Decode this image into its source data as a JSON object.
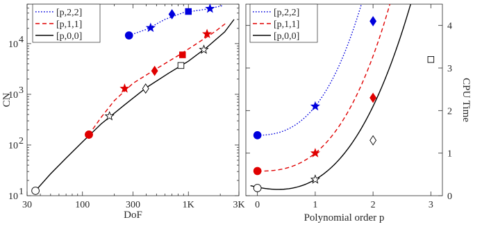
{
  "chart_data": [
    {
      "type": "scatter",
      "xlabel": "DoF",
      "ylabel": "CN",
      "xscale": "log",
      "yscale": "log",
      "xlim": [
        30,
        3000
      ],
      "ylim": [
        10,
        60000
      ],
      "xticks": [
        30,
        100,
        300,
        1000,
        3000
      ],
      "xtick_labels": [
        "30",
        "100",
        "300",
        "1K",
        "3K"
      ],
      "yticks": [
        10,
        100,
        1000,
        10000
      ],
      "ytick_labels": [
        "10",
        "10",
        "10",
        "10"
      ],
      "ytick_exponents": [
        "1",
        "2",
        "3",
        "4"
      ],
      "legend": {
        "position": "top-left",
        "entries": [
          "[p,2,2]",
          "[p,1,1]",
          "[p,0,0]"
        ]
      },
      "series": [
        {
          "name": "[p,2,2]",
          "color": "#0000dd",
          "line_style": "dotted",
          "fill": true,
          "markers": [
            {
              "x": 275,
              "y": 14500,
              "marker": "circle"
            },
            {
              "x": 440,
              "y": 20500,
              "marker": "star"
            },
            {
              "x": 700,
              "y": 38000,
              "marker": "diamond"
            },
            {
              "x": 1000,
              "y": 43000,
              "marker": "square"
            },
            {
              "x": 1600,
              "y": 49000,
              "marker": "star"
            }
          ],
          "curve": [
            [
              275,
              14500
            ],
            [
              400,
              19000
            ],
            [
              600,
              30000
            ],
            [
              900,
              41000
            ],
            [
              1500,
              48000
            ],
            [
              2100,
              56000
            ]
          ]
        },
        {
          "name": "[p,1,1]",
          "color": "#e00000",
          "line_style": "dashed",
          "fill": true,
          "markers": [
            {
              "x": 115,
              "y": 160,
              "marker": "circle"
            },
            {
              "x": 250,
              "y": 1300,
              "marker": "star"
            },
            {
              "x": 480,
              "y": 2900,
              "marker": "diamond"
            },
            {
              "x": 880,
              "y": 6000,
              "marker": "square"
            },
            {
              "x": 1500,
              "y": 15500,
              "marker": "star"
            }
          ],
          "curve": [
            [
              115,
              160
            ],
            [
              150,
              350
            ],
            [
              200,
              750
            ],
            [
              300,
              1650
            ],
            [
              500,
              3200
            ],
            [
              800,
              5800
            ],
            [
              1200,
              10000
            ],
            [
              1800,
              17500
            ],
            [
              2300,
              26000
            ]
          ]
        },
        {
          "name": "[p,0,0]",
          "color": "#000000",
          "line_style": "solid",
          "fill": false,
          "markers": [
            {
              "x": 36,
              "y": 12.5,
              "marker": "circle"
            },
            {
              "x": 115,
              "y": 160,
              "marker": "circle",
              "filled_color": "#e00000"
            },
            {
              "x": 180,
              "y": 370,
              "marker": "star"
            },
            {
              "x": 395,
              "y": 1300,
              "marker": "diamond"
            },
            {
              "x": 850,
              "y": 3700,
              "marker": "square"
            },
            {
              "x": 1400,
              "y": 7600,
              "marker": "star"
            }
          ],
          "curve": [
            [
              36,
              12.5
            ],
            [
              50,
              27
            ],
            [
              70,
              55
            ],
            [
              100,
              115
            ],
            [
              150,
              260
            ],
            [
              250,
              620
            ],
            [
              400,
              1350
            ],
            [
              650,
              2600
            ],
            [
              1000,
              4500
            ],
            [
              1500,
              8500
            ],
            [
              2200,
              17000
            ],
            [
              2700,
              30000
            ]
          ]
        }
      ]
    },
    {
      "type": "scatter",
      "xlabel": "Polynomial order p",
      "ylabel": "CPU Time",
      "xlim": [
        -0.2,
        3.2
      ],
      "ylim": [
        0,
        4.5
      ],
      "xticks": [
        0,
        1,
        2,
        3
      ],
      "xtick_labels": [
        "0",
        "1",
        "2",
        "3"
      ],
      "yticks": [
        0,
        1,
        2,
        3,
        4
      ],
      "ytick_labels": [
        "0",
        "1",
        "2",
        "3",
        "4"
      ],
      "ytick_side": "right",
      "legend": {
        "position": "top-left",
        "entries": [
          "[p,2,2]",
          "[p,1,1]",
          "[p,0,0]"
        ]
      },
      "series": [
        {
          "name": "[p,2,2]",
          "color": "#0000dd",
          "line_style": "dotted",
          "fill": true,
          "points": [
            {
              "x": 0,
              "y": 1.42,
              "marker": "circle"
            },
            {
              "x": 1,
              "y": 2.1,
              "marker": "star"
            },
            {
              "x": 2,
              "y": 4.1,
              "marker": "diamond"
            }
          ],
          "curve_coeffs": [
            1.42,
            0.0,
            0.34,
            0.34
          ],
          "curve_range": [
            0,
            2.12
          ]
        },
        {
          "name": "[p,1,1]",
          "color": "#e00000",
          "line_style": "dashed",
          "fill": true,
          "points": [
            {
              "x": 0,
              "y": 0.58,
              "marker": "circle"
            },
            {
              "x": 1,
              "y": 1.0,
              "marker": "star"
            },
            {
              "x": 2,
              "y": 2.3,
              "marker": "diamond"
            }
          ],
          "curve_coeffs": [
            0.58,
            -0.03,
            0.21,
            0.24
          ],
          "curve_range": [
            0,
            2.75
          ]
        },
        {
          "name": "[p,0,0]",
          "color": "#000000",
          "line_style": "solid",
          "fill": false,
          "points": [
            {
              "x": 0,
              "y": 0.18,
              "marker": "circle"
            },
            {
              "x": 1,
              "y": 0.38,
              "marker": "star"
            },
            {
              "x": 2,
              "y": 1.3,
              "marker": "diamond"
            },
            {
              "x": 3,
              "y": 3.2,
              "marker": "square"
            }
          ],
          "curve_coeffs": [
            0.2,
            -0.27,
            0.29,
            0.16
          ],
          "curve_range": [
            -0.12,
            3.2
          ]
        }
      ]
    }
  ]
}
